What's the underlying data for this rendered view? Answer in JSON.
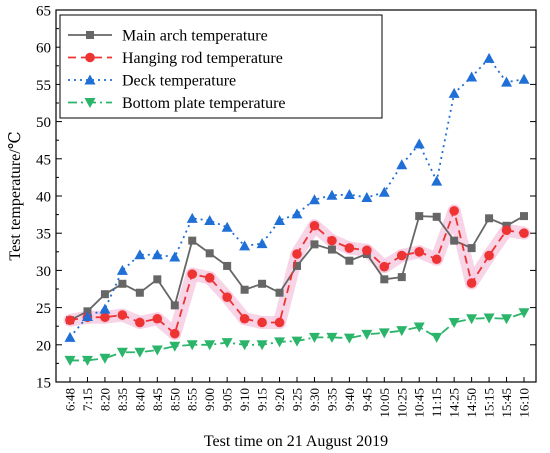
{
  "chart_data": {
    "type": "line",
    "title": "",
    "xlabel": "Test time on 21 August  2019",
    "ylabel": "Test temperature/℃",
    "ylim": [
      15,
      65
    ],
    "yticks": [
      15,
      20,
      25,
      30,
      35,
      40,
      45,
      50,
      55,
      60,
      65
    ],
    "grid": false,
    "legend_position": "top-left",
    "categories": [
      "6:48",
      "7:15",
      "8:20",
      "8:35",
      "8:40",
      "8:45",
      "8:50",
      "8:55",
      "9:00",
      "9:05",
      "9:10",
      "9:15",
      "9:20",
      "9:25",
      "9:30",
      "9:35",
      "9:40",
      "9:45",
      "10:05",
      "10:25",
      "10:45",
      "11:15",
      "14:25",
      "14:50",
      "15:15",
      "15:45",
      "16:10"
    ],
    "series": [
      {
        "name": "Main arch temperature",
        "color": "#666666",
        "marker": "square",
        "line_style": "solid",
        "values": [
          23.3,
          24.5,
          26.8,
          28.2,
          27.0,
          28.8,
          25.3,
          34.0,
          32.3,
          30.6,
          27.4,
          28.2,
          27.0,
          30.6,
          33.5,
          32.8,
          31.3,
          32.2,
          28.8,
          29.1,
          37.3,
          37.2,
          34.0,
          33.0,
          37.0,
          36.0,
          37.3
        ]
      },
      {
        "name": "Hanging rod temperature",
        "color": "#ee3333",
        "marker": "circle",
        "line_style": "dash",
        "values": [
          23.3,
          23.7,
          23.7,
          24.0,
          23.0,
          23.5,
          21.5,
          29.5,
          29.0,
          26.4,
          23.5,
          23.0,
          23.0,
          32.2,
          36.0,
          34.0,
          33.0,
          32.7,
          30.5,
          32.0,
          32.5,
          31.5,
          38.0,
          28.3,
          32.0,
          35.4,
          35.0
        ]
      },
      {
        "name": "Deck temperature",
        "color": "#1f6fd6",
        "marker": "triangle-up",
        "line_style": "dot",
        "values": [
          21.0,
          23.8,
          24.8,
          30.0,
          32.1,
          32.1,
          31.8,
          37.0,
          36.7,
          35.8,
          33.3,
          33.6,
          36.7,
          37.6,
          39.5,
          40.1,
          40.2,
          39.8,
          40.5,
          44.2,
          47.0,
          42.0,
          53.8,
          56.0,
          58.5,
          55.3,
          55.7
        ]
      },
      {
        "name": "Bottom plate temperature",
        "color": "#2bb56b",
        "marker": "triangle-down",
        "line_style": "dashdot",
        "values": [
          17.9,
          17.9,
          18.2,
          19.0,
          19.0,
          19.3,
          19.8,
          20.0,
          20.0,
          20.3,
          20.0,
          20.0,
          20.4,
          20.5,
          21.0,
          21.0,
          20.9,
          21.4,
          21.6,
          21.9,
          22.4,
          21.0,
          23.0,
          23.5,
          23.6,
          23.5,
          24.3
        ]
      }
    ]
  }
}
